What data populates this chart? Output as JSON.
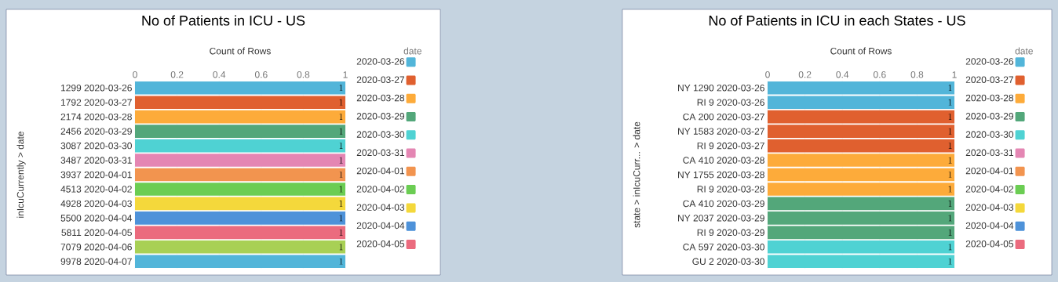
{
  "chart_data": [
    {
      "type": "bar",
      "orientation": "horizontal",
      "title": "No of Patients in ICU - US",
      "xlabel": "Count of Rows",
      "ylabel": "inIcuCurrently > date",
      "legend_title": "date",
      "categories": [
        "1299 2020-03-26",
        "1792 2020-03-27",
        "2174 2020-03-28",
        "2456 2020-03-29",
        "3087 2020-03-30",
        "3487 2020-03-31",
        "3937 2020-04-01",
        "4513 2020-04-02",
        "4928 2020-04-03",
        "5500 2020-04-04",
        "5811 2020-04-05",
        "7079 2020-04-06",
        "9978 2020-04-07"
      ],
      "xlim": [
        0,
        1
      ],
      "xticks": [
        0,
        0.2,
        0.4,
        0.6,
        0.8,
        1
      ],
      "grid": "x",
      "legend": "right",
      "data_labels": true,
      "series": [
        {
          "name": "2020-03-26",
          "color": "#52b5d9",
          "values": [
            1,
            null,
            null,
            null,
            null,
            null,
            null,
            null,
            null,
            null,
            null,
            null,
            null
          ]
        },
        {
          "name": "2020-03-27",
          "color": "#e0602f",
          "values": [
            null,
            1,
            null,
            null,
            null,
            null,
            null,
            null,
            null,
            null,
            null,
            null,
            null
          ]
        },
        {
          "name": "2020-03-28",
          "color": "#fdab3a",
          "values": [
            null,
            null,
            1,
            null,
            null,
            null,
            null,
            null,
            null,
            null,
            null,
            null,
            null
          ]
        },
        {
          "name": "2020-03-29",
          "color": "#53a77a",
          "values": [
            null,
            null,
            null,
            1,
            null,
            null,
            null,
            null,
            null,
            null,
            null,
            null,
            null
          ]
        },
        {
          "name": "2020-03-30",
          "color": "#4fd2d3",
          "values": [
            null,
            null,
            null,
            null,
            1,
            null,
            null,
            null,
            null,
            null,
            null,
            null,
            null
          ]
        },
        {
          "name": "2020-03-31",
          "color": "#e486b3",
          "values": [
            null,
            null,
            null,
            null,
            null,
            1,
            null,
            null,
            null,
            null,
            null,
            null,
            null
          ]
        },
        {
          "name": "2020-04-01",
          "color": "#f2944f",
          "values": [
            null,
            null,
            null,
            null,
            null,
            null,
            1,
            null,
            null,
            null,
            null,
            null,
            null
          ]
        },
        {
          "name": "2020-04-02",
          "color": "#6bcd53",
          "values": [
            null,
            null,
            null,
            null,
            null,
            null,
            null,
            1,
            null,
            null,
            null,
            null,
            null
          ]
        },
        {
          "name": "2020-04-03",
          "color": "#f4d83b",
          "values": [
            null,
            null,
            null,
            null,
            null,
            null,
            null,
            null,
            1,
            null,
            null,
            null,
            null
          ]
        },
        {
          "name": "2020-04-04",
          "color": "#4e92d9",
          "values": [
            null,
            null,
            null,
            null,
            null,
            null,
            null,
            null,
            null,
            1,
            null,
            null,
            null
          ]
        },
        {
          "name": "2020-04-05",
          "color": "#eb6b7e",
          "values": [
            null,
            null,
            null,
            null,
            null,
            null,
            null,
            null,
            null,
            null,
            1,
            null,
            null
          ]
        },
        {
          "color": "#a8d055",
          "values": [
            null,
            null,
            null,
            null,
            null,
            null,
            null,
            null,
            null,
            null,
            null,
            1,
            null
          ]
        },
        {
          "color": "#52b5d9",
          "values": [
            null,
            null,
            null,
            null,
            null,
            null,
            null,
            null,
            null,
            null,
            null,
            null,
            1
          ]
        }
      ]
    },
    {
      "type": "bar",
      "orientation": "horizontal",
      "title": "No of Patients in ICU in each States - US",
      "xlabel": "Count of Rows",
      "ylabel": "state > inIcuCurr... > date",
      "legend_title": "date",
      "categories": [
        "NY 1290 2020-03-26",
        "RI 9 2020-03-26",
        "CA 200 2020-03-27",
        "NY 1583 2020-03-27",
        "RI 9 2020-03-27",
        "CA 410 2020-03-28",
        "NY 1755 2020-03-28",
        "RI 9 2020-03-28",
        "CA 410 2020-03-29",
        "NY 2037 2020-03-29",
        "RI 9 2020-03-29",
        "CA 597 2020-03-30",
        "GU 2 2020-03-30"
      ],
      "xlim": [
        0,
        1
      ],
      "xticks": [
        0,
        0.2,
        0.4,
        0.6,
        0.8,
        1
      ],
      "grid": "x",
      "legend": "right",
      "data_labels": true,
      "series": [
        {
          "name": "2020-03-26",
          "color": "#52b5d9",
          "values": [
            1,
            1,
            null,
            null,
            null,
            null,
            null,
            null,
            null,
            null,
            null,
            null,
            null
          ]
        },
        {
          "name": "2020-03-27",
          "color": "#e0602f",
          "values": [
            null,
            null,
            1,
            1,
            1,
            null,
            null,
            null,
            null,
            null,
            null,
            null,
            null
          ]
        },
        {
          "name": "2020-03-28",
          "color": "#fdab3a",
          "values": [
            null,
            null,
            null,
            null,
            null,
            1,
            1,
            1,
            null,
            null,
            null,
            null,
            null
          ]
        },
        {
          "name": "2020-03-29",
          "color": "#53a77a",
          "values": [
            null,
            null,
            null,
            null,
            null,
            null,
            null,
            null,
            1,
            1,
            1,
            null,
            null
          ]
        },
        {
          "name": "2020-03-30",
          "color": "#4fd2d3",
          "values": [
            null,
            null,
            null,
            null,
            null,
            null,
            null,
            null,
            null,
            null,
            null,
            1,
            1
          ]
        },
        {
          "name": "2020-03-31",
          "color": "#e486b3",
          "values": [
            null,
            null,
            null,
            null,
            null,
            null,
            null,
            null,
            null,
            null,
            null,
            null,
            null
          ]
        },
        {
          "name": "2020-04-01",
          "color": "#f2944f",
          "values": [
            null,
            null,
            null,
            null,
            null,
            null,
            null,
            null,
            null,
            null,
            null,
            null,
            null
          ]
        },
        {
          "name": "2020-04-02",
          "color": "#6bcd53",
          "values": [
            null,
            null,
            null,
            null,
            null,
            null,
            null,
            null,
            null,
            null,
            null,
            null,
            null
          ]
        },
        {
          "name": "2020-04-03",
          "color": "#f4d83b",
          "values": [
            null,
            null,
            null,
            null,
            null,
            null,
            null,
            null,
            null,
            null,
            null,
            null,
            null
          ]
        },
        {
          "name": "2020-04-04",
          "color": "#4e92d9",
          "values": [
            null,
            null,
            null,
            null,
            null,
            null,
            null,
            null,
            null,
            null,
            null,
            null,
            null
          ]
        },
        {
          "name": "2020-04-05",
          "color": "#eb6b7e",
          "values": [
            null,
            null,
            null,
            null,
            null,
            null,
            null,
            null,
            null,
            null,
            null,
            null,
            null
          ]
        }
      ]
    }
  ]
}
